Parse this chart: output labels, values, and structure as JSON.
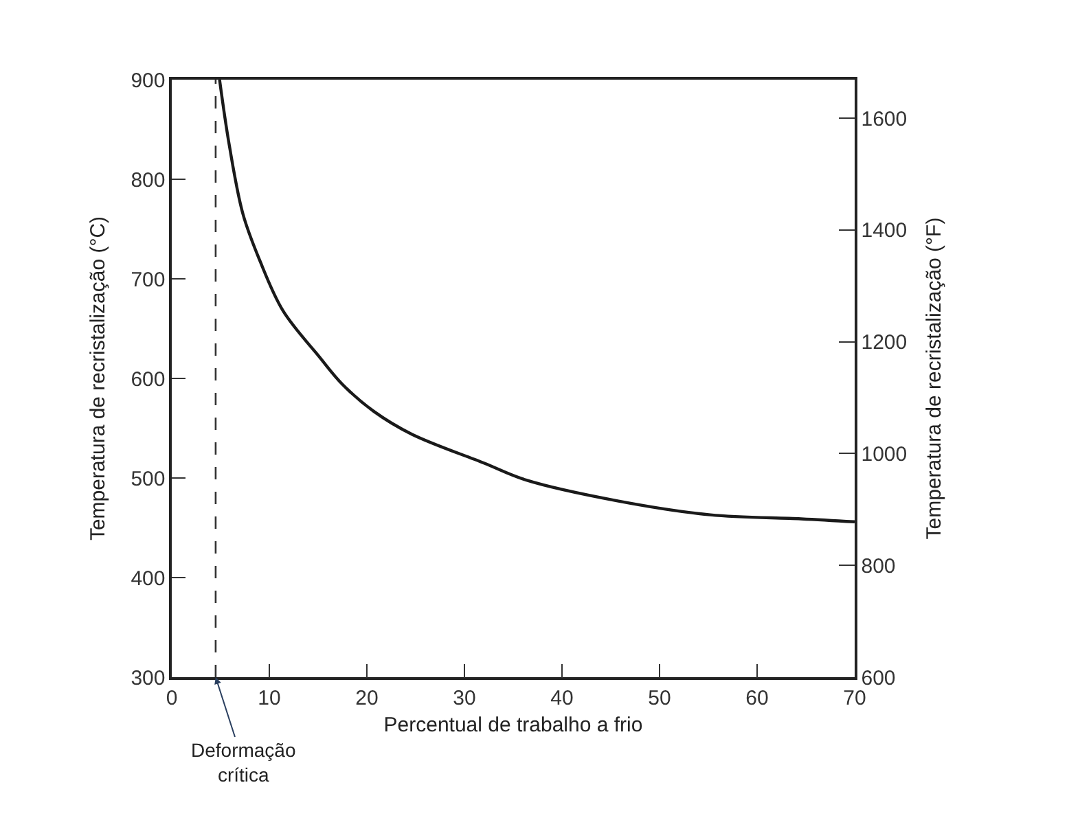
{
  "chart_data": {
    "type": "line",
    "xlabel": "Percentual de trabalho a frio",
    "ylabel": "Temperatura de recristalização (°C)",
    "y2label": "Temperatura de recristalização (°F)",
    "x": [
      4.9,
      5.9,
      7.3,
      9.0,
      11.4,
      15.1,
      17.5,
      20.7,
      24.6,
      32,
      36.3,
      45.7,
      55.2,
      64.5,
      70
    ],
    "series": [
      {
        "color": "#1a1a1a",
        "values": [
          900,
          834,
          765,
          719,
          668,
          622,
          594,
          567,
          544,
          515,
          498,
          477,
          463,
          459,
          456
        ]
      }
    ],
    "xlim": [
      0,
      70
    ],
    "xticks": [
      0,
      10,
      20,
      30,
      40,
      50,
      60,
      70
    ],
    "ylim": [
      300,
      900
    ],
    "yticks": [
      300,
      400,
      500,
      600,
      700,
      800,
      900
    ],
    "y2lim": [
      600,
      1669
    ],
    "y2ticks": [
      600,
      800,
      1000,
      1200,
      1400,
      1600
    ],
    "ref_lines": [
      {
        "axis": "x",
        "value": 4.5,
        "line_style": "dashed",
        "color": "#333333"
      }
    ],
    "annotations": [
      {
        "text": "Deformação\ncrítica",
        "x": 4.5,
        "y": 300
      }
    ],
    "legend": false,
    "marker": "none",
    "line_style": "solid"
  }
}
